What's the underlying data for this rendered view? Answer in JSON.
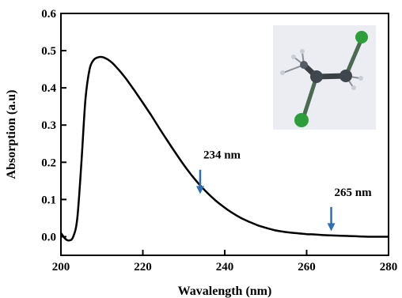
{
  "chart_data": {
    "type": "line",
    "xlabel": "Wavalength (nm)",
    "ylabel": "Absorption (a.u)",
    "xlim": [
      200,
      280
    ],
    "ylim": [
      -0.05,
      0.6
    ],
    "xticks": [
      200,
      220,
      240,
      260,
      280
    ],
    "yticks": [
      0.0,
      0.1,
      0.2,
      0.3,
      0.4,
      0.5,
      0.6
    ],
    "xtick_labels": [
      "200",
      "220",
      "240",
      "260",
      "280"
    ],
    "ytick_labels": [
      "0.0",
      "0.1",
      "0.2",
      "0.3",
      "0.4",
      "0.5",
      "0.6"
    ],
    "grid": false,
    "series": [
      {
        "color": "#000000",
        "x": [
          200,
          201,
          202,
          203,
          204,
          205,
          206,
          207,
          208,
          209,
          210,
          211,
          212,
          213,
          214,
          215,
          216,
          218,
          220,
          222,
          224,
          226,
          228,
          230,
          232,
          234,
          236,
          238,
          240,
          242,
          244,
          246,
          248,
          250,
          252,
          254,
          256,
          258,
          260,
          262,
          265,
          270,
          275,
          280
        ],
        "y": [
          0.01,
          -0.005,
          -0.01,
          0.0,
          0.05,
          0.2,
          0.37,
          0.45,
          0.475,
          0.482,
          0.483,
          0.479,
          0.472,
          0.462,
          0.45,
          0.437,
          0.423,
          0.392,
          0.36,
          0.327,
          0.292,
          0.258,
          0.225,
          0.193,
          0.164,
          0.138,
          0.115,
          0.095,
          0.078,
          0.063,
          0.05,
          0.04,
          0.031,
          0.024,
          0.018,
          0.014,
          0.011,
          0.009,
          0.007,
          0.006,
          0.004,
          0.002,
          0.0,
          0.0
        ]
      }
    ],
    "annotations": [
      {
        "text": "234 nm",
        "arrow_x": 234,
        "arrow_y_top": 0.18,
        "arrow_y_bottom": 0.115,
        "color": "#2d6fb7"
      },
      {
        "text": "265 nm",
        "arrow_x": 266,
        "arrow_y_top": 0.08,
        "arrow_y_bottom": 0.015,
        "color": "#2d6fb7"
      }
    ]
  },
  "inset": {
    "description_icon": "molecule-inset-icon"
  }
}
